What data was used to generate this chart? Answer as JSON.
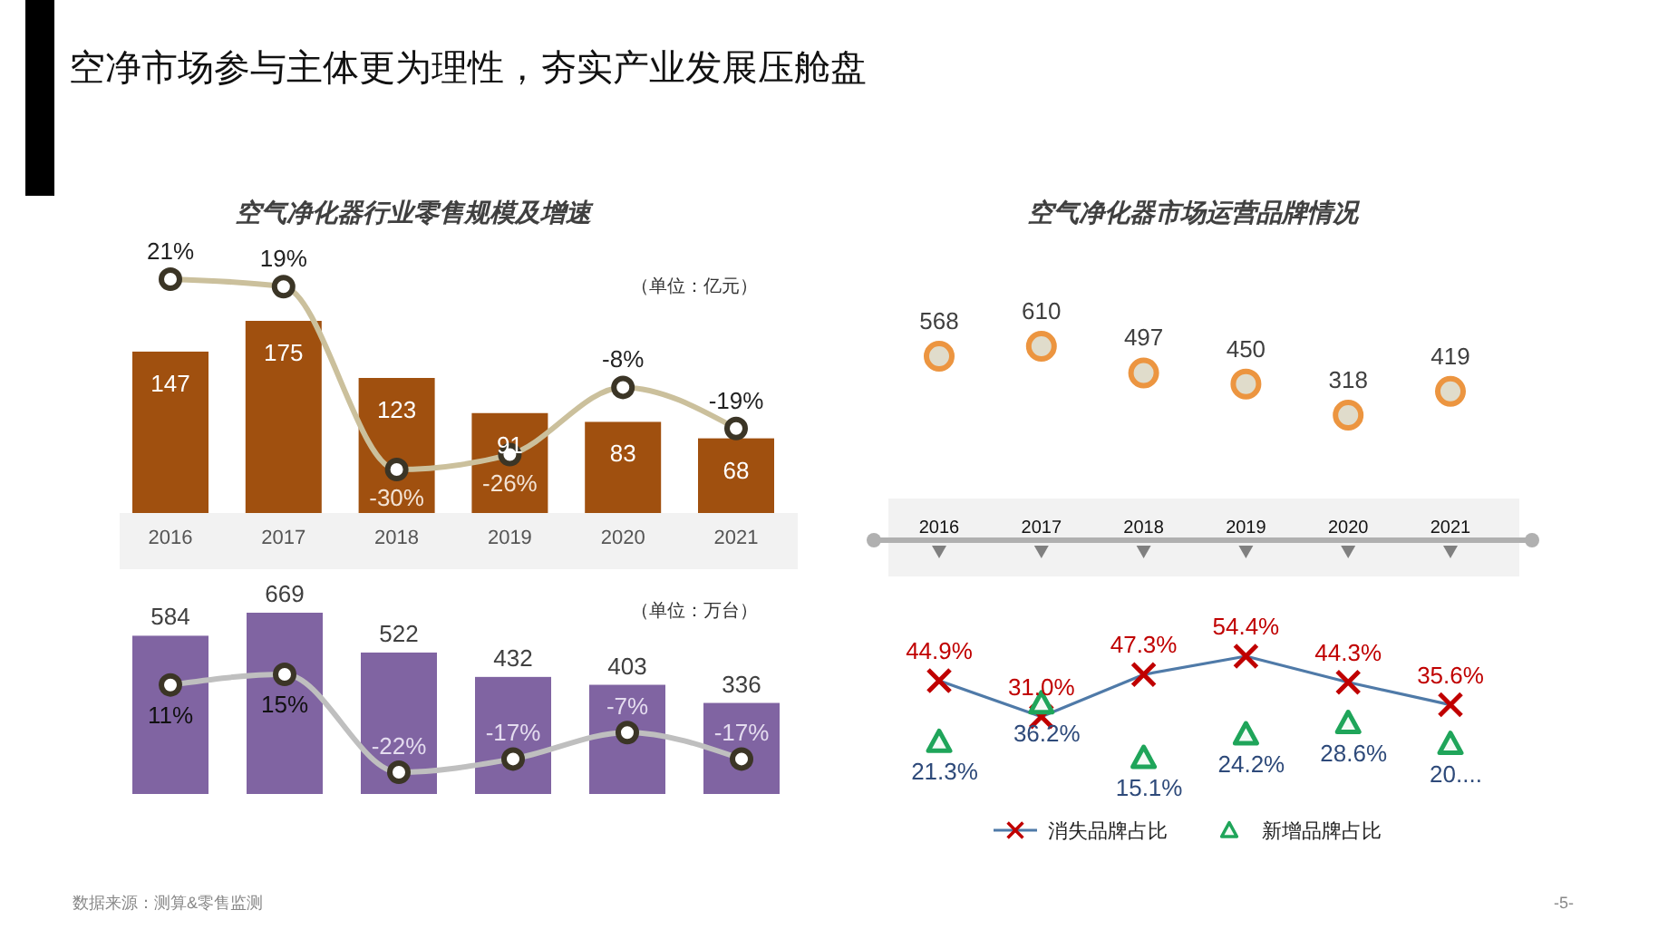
{
  "chart_data": [
    {
      "type": "other",
      "title": "空净市场参与主体更为理性，夯实产业发展压舱盘",
      "annotations": [
        "数据来源：测算&零售监测",
        "-5-"
      ]
    },
    {
      "type": "bar",
      "title": "空气净化器行业零售规模及增速",
      "categories": [
        "2016",
        "2017",
        "2018",
        "2019",
        "2020",
        "2021"
      ],
      "tick_labels": "x",
      "marker": "circle",
      "annotations": [
        "（单位：亿元）"
      ],
      "series": [
        {
          "type": "bar",
          "color": "#a0500f",
          "values": [
            147,
            175,
            123,
            91,
            83,
            68
          ],
          "value_labels": [
            "147",
            "175",
            "123",
            "91",
            "83",
            "68"
          ]
        },
        {
          "type": "line",
          "axis": "y2",
          "color": "#cbc09c",
          "values": [
            21,
            19,
            -30,
            -26,
            -8,
            -19
          ],
          "value_labels": [
            "21%",
            "19%",
            "-30%",
            "-26%",
            "-8%",
            "-19%"
          ]
        }
      ]
    },
    {
      "type": "bar",
      "categories": [
        "2016",
        "2017",
        "2018",
        "2019",
        "2020",
        "2021"
      ],
      "tick_labels": false,
      "marker": "circle",
      "annotations": [
        "（单位：万台）"
      ],
      "series": [
        {
          "type": "bar",
          "color": "#8064a2",
          "values": [
            584,
            669,
            522,
            432,
            403,
            336
          ],
          "value_labels": [
            "584",
            "669",
            "522",
            "432",
            "403",
            "336"
          ]
        },
        {
          "type": "line",
          "axis": "y2",
          "color": "#bfbfbf",
          "values": [
            11,
            15,
            -22,
            -17,
            -7,
            -17
          ],
          "value_labels": [
            "11%",
            "15%",
            "-22%",
            "-17%",
            "-7%",
            "-17%"
          ]
        }
      ]
    },
    {
      "type": "scatter",
      "title": "空气净化器市场运营品牌情况",
      "categories": [
        "2016",
        "2017",
        "2018",
        "2019",
        "2020",
        "2021"
      ],
      "tick_labels": "x",
      "marker": "circle",
      "series": [
        {
          "color": "#ec9540",
          "values": [
            568,
            610,
            497,
            450,
            318,
            419
          ],
          "value_labels": [
            "568",
            "610",
            "497",
            "450",
            "318",
            "419"
          ]
        }
      ]
    },
    {
      "type": "line",
      "categories": [
        "2016",
        "2017",
        "2018",
        "2019",
        "2020",
        "2021"
      ],
      "tick_labels": false,
      "legend": "bottom",
      "series": [
        {
          "name": "消失品牌占比",
          "type": "line",
          "marker": "cross",
          "color": "#c00000",
          "values": [
            44.9,
            31.0,
            47.3,
            54.4,
            44.3,
            35.6
          ],
          "value_labels": [
            "44.9%",
            "31.0%",
            "47.3%",
            "54.4%",
            "44.3%",
            "35.6%"
          ]
        },
        {
          "name": "新增品牌占比",
          "type": "scatter",
          "marker": "triangle",
          "color": "#1fa55a",
          "values": [
            21.3,
            36.2,
            15.1,
            24.2,
            28.6,
            20.5
          ],
          "value_labels": [
            "21.3%",
            "36.2%",
            "15.1%",
            "24.2%",
            "28.6%",
            "20...."
          ]
        }
      ]
    }
  ]
}
